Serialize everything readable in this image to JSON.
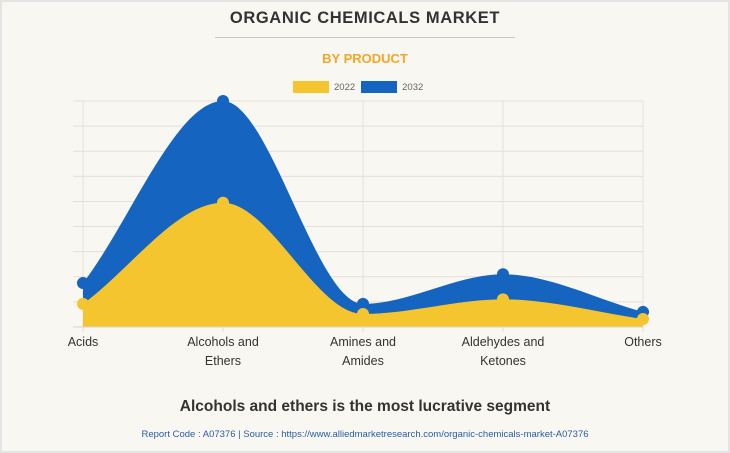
{
  "title": "ORGANIC CHEMICALS MARKET",
  "subtitle": "BY PRODUCT",
  "headline": "Alcohols and ethers is the most lucrative segment",
  "footer": "Report Code : A07376  |  Source : https://www.alliedmarketresearch.com/organic-chemicals-market-A07376",
  "colors": {
    "s2022": "#F4C52E",
    "s2032": "#1565C0",
    "background": "#F9F7F1",
    "subtitle": "#F5A623"
  },
  "chart_data": {
    "type": "area",
    "title": "ORGANIC CHEMICALS MARKET",
    "subtitle": "BY PRODUCT",
    "xlabel": "",
    "ylabel": "",
    "categories": [
      [
        "Acids"
      ],
      [
        "Alcohols and",
        "Ethers"
      ],
      [
        "Amines and",
        "Amides"
      ],
      [
        "Aldehydes and",
        "Ketones"
      ],
      [
        "Others"
      ]
    ],
    "series": [
      {
        "name": "2032",
        "values": [
          1.75,
          9.0,
          0.92,
          2.1,
          0.6
        ]
      },
      {
        "name": "2022",
        "values": [
          0.92,
          4.95,
          0.52,
          1.1,
          0.32
        ]
      }
    ],
    "ylim": [
      0,
      9
    ],
    "grid": true,
    "grid_lines": 10,
    "legend": "top-center",
    "smooth": true
  }
}
